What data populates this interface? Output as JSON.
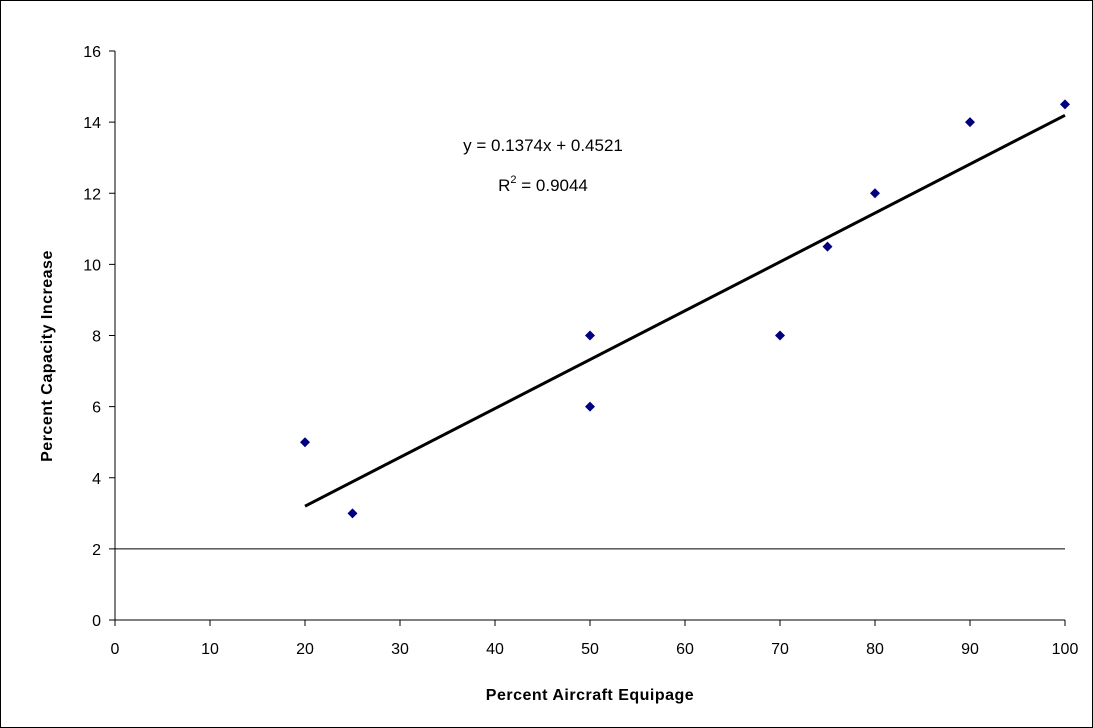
{
  "chart_data": {
    "type": "scatter",
    "title": "",
    "xlabel": "Percent Aircraft Equipage",
    "ylabel": "Percent Capacity Increase",
    "xlim": [
      0,
      100
    ],
    "ylim": [
      0,
      16
    ],
    "x_ticks": [
      0,
      10,
      20,
      30,
      40,
      50,
      60,
      70,
      80,
      90,
      100
    ],
    "y_ticks": [
      0,
      2,
      4,
      6,
      8,
      10,
      12,
      14,
      16
    ],
    "grid": false,
    "reference_line_y": 2,
    "legend": "none",
    "marker_color": "#000080",
    "series": [
      {
        "points": [
          {
            "x": 20,
            "y": 5
          },
          {
            "x": 25,
            "y": 3
          },
          {
            "x": 50,
            "y": 8
          },
          {
            "x": 50,
            "y": 6
          },
          {
            "x": 70,
            "y": 8
          },
          {
            "x": 75,
            "y": 10.5
          },
          {
            "x": 80,
            "y": 12
          },
          {
            "x": 90,
            "y": 14
          },
          {
            "x": 100,
            "y": 14.5
          }
        ]
      }
    ],
    "trendline": {
      "type": "linear",
      "slope": 0.1374,
      "intercept": 0.4521,
      "x_range": [
        20,
        100
      ],
      "equation_label": "y = 0.1374x + 0.4521",
      "r2_prefix": "R",
      "r2_superscript": "2",
      "r2_suffix": " = 0.9044"
    }
  }
}
